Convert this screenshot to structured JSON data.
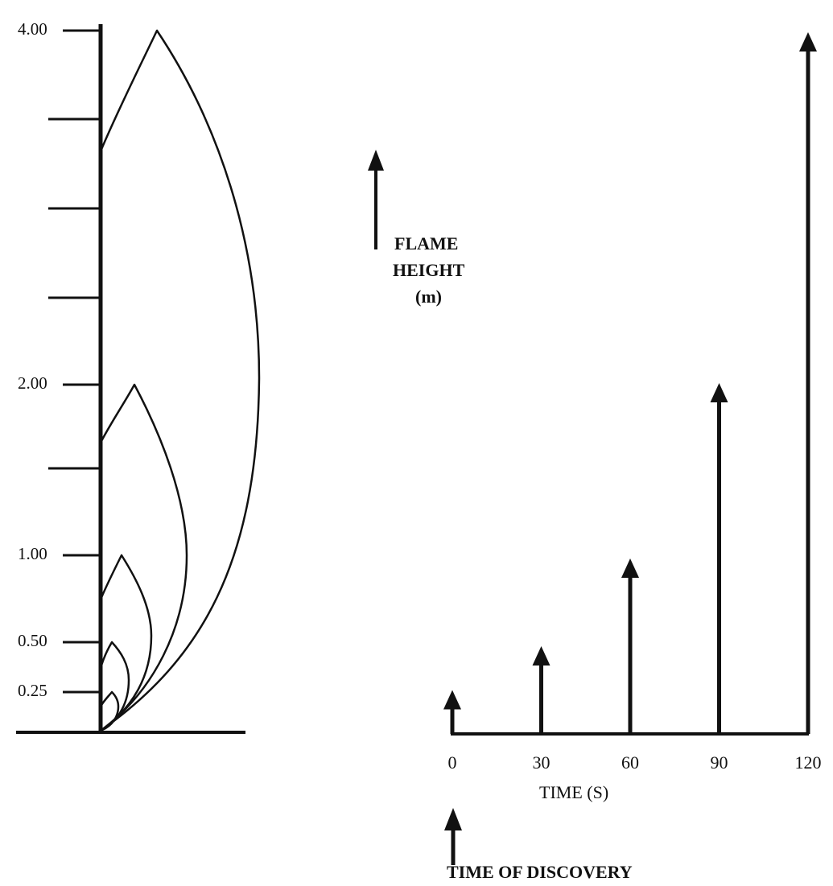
{
  "scale": {
    "tick_labels": [
      "4.00",
      "2.00",
      "1.00",
      "0.50",
      "0.25"
    ]
  },
  "flames": [
    {
      "time_s": 0,
      "height_m": 0.25
    },
    {
      "time_s": 30,
      "height_m": 0.5
    },
    {
      "time_s": 60,
      "height_m": 1.0
    },
    {
      "time_s": 90,
      "height_m": 2.0
    },
    {
      "time_s": 120,
      "height_m": 4.0
    }
  ],
  "legend": {
    "line1": "FLAME",
    "line2": "HEIGHT",
    "line3": "(m)"
  },
  "time_axis": {
    "label": "TIME (S)",
    "ticks": [
      "0",
      "30",
      "60",
      "90",
      "120"
    ],
    "discovery_label": "TIME OF DISCOVERY"
  },
  "colors": {
    "ink": "#111111",
    "background": "#ffffff"
  }
}
